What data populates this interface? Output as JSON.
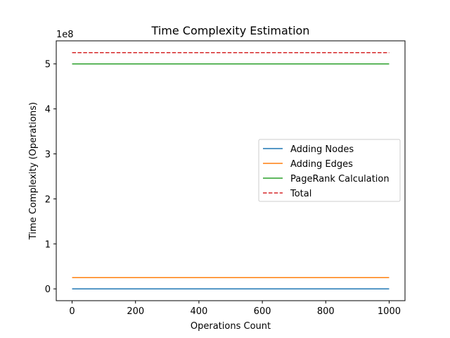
{
  "chart_data": {
    "type": "line",
    "title": "Time Complexity Estimation",
    "xlabel": "Operations Count",
    "ylabel": "Time Complexity (Operations)",
    "y_offset_label": "1e8",
    "xlim": [
      -50,
      1050
    ],
    "ylim": [
      -0.2625,
      5.5125
    ],
    "y_unit": 100000000,
    "xticks": [
      0,
      200,
      400,
      600,
      800,
      1000
    ],
    "xtick_labels": [
      "0",
      "200",
      "400",
      "600",
      "800",
      "1000"
    ],
    "yticks": [
      0,
      1,
      2,
      3,
      4,
      5
    ],
    "ytick_labels": [
      "0",
      "1",
      "2",
      "3",
      "4",
      "5"
    ],
    "grid": false,
    "legend_position": "center-right",
    "series": [
      {
        "name": "Adding Nodes",
        "color": "#1f77b4",
        "dash": "solid",
        "x": [
          0,
          1000
        ],
        "y": [
          0.0,
          0.0
        ]
      },
      {
        "name": "Adding Edges",
        "color": "#ff7f0e",
        "dash": "solid",
        "x": [
          0,
          1000
        ],
        "y": [
          0.25,
          0.25
        ]
      },
      {
        "name": "PageRank Calculation",
        "color": "#2ca02c",
        "dash": "solid",
        "x": [
          0,
          1000
        ],
        "y": [
          5.0,
          5.0
        ]
      },
      {
        "name": "Total",
        "color": "#d62728",
        "dash": "dashed",
        "x": [
          0,
          1000
        ],
        "y": [
          5.25,
          5.25
        ]
      }
    ]
  }
}
